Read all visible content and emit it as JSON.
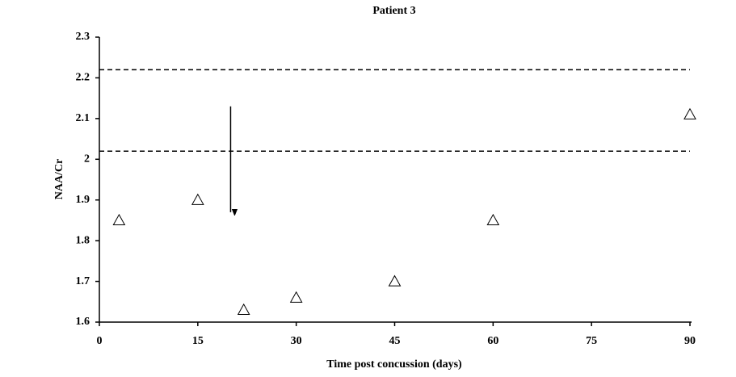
{
  "chart_data": {
    "type": "scatter",
    "title": "Patient 3",
    "x_label": "Time post concussion (days)",
    "y_label": "NAA/Cr",
    "x": [
      3,
      15,
      22,
      30,
      45,
      60,
      90
    ],
    "y": [
      1.85,
      1.9,
      1.63,
      1.66,
      1.7,
      1.85,
      2.11
    ],
    "marker": "triangle",
    "color": "#000000",
    "xlim": [
      0,
      90
    ],
    "xticks": [
      0,
      15,
      30,
      45,
      60,
      75,
      90
    ],
    "ylim": [
      1.6,
      2.3
    ],
    "yticks": [
      1.6,
      1.7,
      1.8,
      1.9,
      2,
      2.1,
      2.2,
      2.3
    ],
    "reference_lines": [
      2.22,
      2.02
    ],
    "arrow": {
      "x": 20,
      "y_start": 2.13,
      "y_end": 1.85
    }
  }
}
